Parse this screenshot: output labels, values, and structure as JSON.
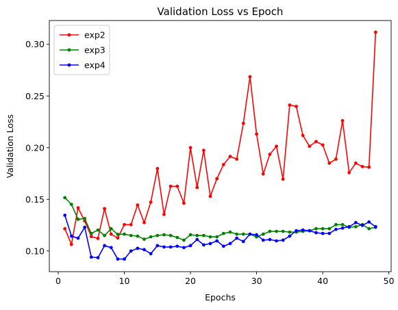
{
  "chart_data": {
    "type": "line",
    "title": "Validation Loss vs Epoch",
    "xlabel": "Epochs",
    "ylabel": "Validation Loss",
    "xlim": [
      -1.35,
      50.35
    ],
    "ylim": [
      0.08,
      0.323
    ],
    "xticks": [
      0,
      10,
      20,
      30,
      40,
      50
    ],
    "yticks": [
      0.1,
      0.15,
      0.2,
      0.25,
      0.3
    ],
    "ytick_labels": [
      "0.10",
      "0.15",
      "0.20",
      "0.25",
      "0.30"
    ],
    "grid": false,
    "legend_position": "top-left",
    "x": [
      1,
      2,
      3,
      4,
      5,
      6,
      7,
      8,
      9,
      10,
      11,
      12,
      13,
      14,
      15,
      16,
      17,
      18,
      19,
      20,
      21,
      22,
      23,
      24,
      25,
      26,
      27,
      28,
      29,
      30,
      31,
      32,
      33,
      34,
      35,
      36,
      37,
      38,
      39,
      40,
      41,
      42,
      43,
      44,
      45,
      46,
      47,
      48
    ],
    "series": [
      {
        "name": "exp2",
        "color": "#ff0000",
        "values": [
          0.1215,
          0.1064,
          0.1418,
          0.1291,
          0.114,
          0.1122,
          0.141,
          0.1163,
          0.1126,
          0.1255,
          0.1255,
          0.1445,
          0.1275,
          0.1473,
          0.1797,
          0.1354,
          0.1626,
          0.1626,
          0.1463,
          0.2,
          0.1615,
          0.1974,
          0.1529,
          0.17,
          0.1836,
          0.1915,
          0.1889,
          0.2235,
          0.2686,
          0.2131,
          0.1745,
          0.1935,
          0.2013,
          0.1695,
          0.2412,
          0.2399,
          0.2118,
          0.2013,
          0.2059,
          0.2026,
          0.185,
          0.1889,
          0.2261,
          0.1758,
          0.185,
          0.1817,
          0.1811,
          0.3117
        ]
      },
      {
        "name": "exp3",
        "color": "#008000",
        "values": [
          0.1516,
          0.1451,
          0.1307,
          0.1314,
          0.117,
          0.1203,
          0.115,
          0.1216,
          0.1161,
          0.1163,
          0.115,
          0.1144,
          0.1114,
          0.1137,
          0.115,
          0.1157,
          0.115,
          0.1131,
          0.1105,
          0.1157,
          0.115,
          0.115,
          0.1137,
          0.1137,
          0.117,
          0.1183,
          0.1163,
          0.1163,
          0.1163,
          0.1137,
          0.1163,
          0.119,
          0.119,
          0.119,
          0.1183,
          0.1183,
          0.119,
          0.1196,
          0.1216,
          0.1216,
          0.1216,
          0.1255,
          0.1255,
          0.1229,
          0.1235,
          0.1255,
          0.1216,
          0.1229
        ]
      },
      {
        "name": "exp4",
        "color": "#0000ff",
        "values": [
          0.1346,
          0.1144,
          0.1124,
          0.1229,
          0.0941,
          0.0935,
          0.1052,
          0.1033,
          0.0922,
          0.0922,
          0.1,
          0.1026,
          0.1013,
          0.0974,
          0.1052,
          0.1039,
          0.1039,
          0.1046,
          0.1033,
          0.1052,
          0.1111,
          0.1059,
          0.1072,
          0.1098,
          0.1046,
          0.1072,
          0.1124,
          0.1092,
          0.1163,
          0.1157,
          0.1105,
          0.1111,
          0.1098,
          0.1105,
          0.1144,
          0.1196,
          0.1203,
          0.1196,
          0.1177,
          0.117,
          0.117,
          0.1209,
          0.1222,
          0.1235,
          0.1275,
          0.1248,
          0.1281,
          0.1235
        ]
      }
    ]
  }
}
